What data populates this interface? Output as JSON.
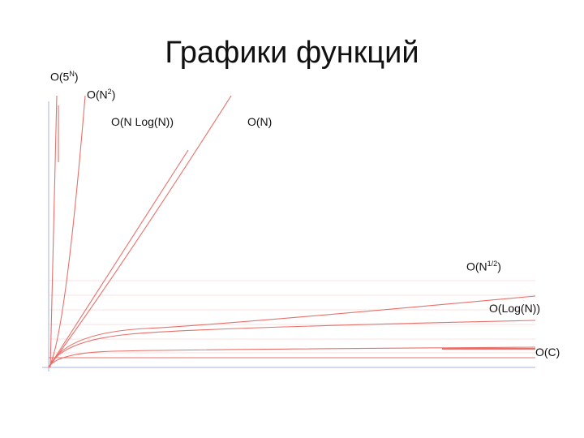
{
  "title": "Графики функций",
  "labels": [
    {
      "text": "O(5",
      "sup": "N",
      "end": ")"
    },
    {
      "text": "O(N",
      "sup": "2",
      "end": ")"
    },
    {
      "text": "O(N Log(N))"
    },
    {
      "text": "O(N)"
    },
    {
      "text": "O(N",
      "sup": "1/2",
      "end": ")"
    },
    {
      "text": "O(Log(N))"
    },
    {
      "text": "O(C)"
    }
  ]
}
